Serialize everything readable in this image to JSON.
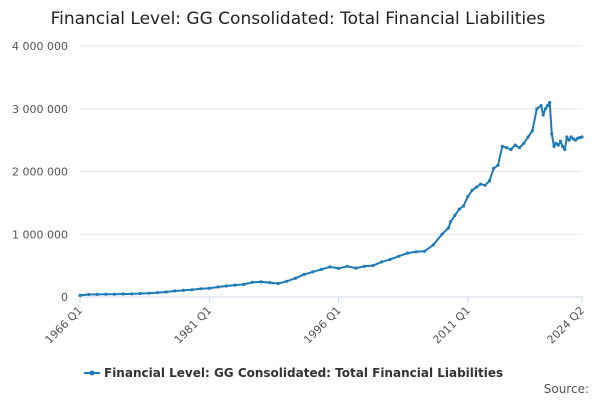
{
  "chart_data": {
    "type": "line",
    "title": "Financial Level: GG Consolidated: Total Financial Liabilities",
    "xlabel": "",
    "ylabel": "",
    "ylim": [
      0,
      4000000
    ],
    "yticks": [
      0,
      1000000,
      2000000,
      3000000,
      4000000
    ],
    "ytick_labels": [
      "0",
      "1 000 000",
      "2 000 000",
      "3 000 000",
      "4 000 000"
    ],
    "xlim": [
      1966.0,
      2024.25
    ],
    "xticks": [
      1966.0,
      1981.0,
      1996.0,
      2011.0,
      2024.25
    ],
    "xtick_labels": [
      "1966 Q1",
      "1981 Q1",
      "1996 Q1",
      "2011 Q1",
      "2024 Q2"
    ],
    "grid": "horizontal",
    "legend_position": "bottom",
    "series": [
      {
        "name": "Financial Level: GG Consolidated: Total Financial Liabilities",
        "color": "#1f7bb6",
        "x": [
          1966.0,
          1967.0,
          1968.0,
          1969.0,
          1970.0,
          1971.0,
          1972.0,
          1973.0,
          1974.0,
          1975.0,
          1976.0,
          1977.0,
          1978.0,
          1979.0,
          1980.0,
          1981.0,
          1982.0,
          1983.0,
          1984.0,
          1985.0,
          1986.0,
          1987.0,
          1988.0,
          1989.0,
          1990.0,
          1991.0,
          1992.0,
          1993.0,
          1994.0,
          1995.0,
          1996.0,
          1997.0,
          1998.0,
          1999.0,
          2000.0,
          2001.0,
          2002.0,
          2003.0,
          2004.0,
          2005.0,
          2006.0,
          2007.0,
          2008.0,
          2008.75,
          2009.0,
          2009.5,
          2010.0,
          2010.5,
          2011.0,
          2011.5,
          2012.0,
          2012.5,
          2013.0,
          2013.5,
          2014.0,
          2014.5,
          2015.0,
          2015.5,
          2016.0,
          2016.5,
          2017.0,
          2017.5,
          2018.0,
          2018.5,
          2019.0,
          2019.5,
          2019.75,
          2020.0,
          2020.25,
          2020.5,
          2020.75,
          2021.0,
          2021.25,
          2021.5,
          2021.75,
          2022.0,
          2022.25,
          2022.5,
          2022.75,
          2023.0,
          2023.25,
          2023.5,
          2023.75,
          2024.0,
          2024.25
        ],
        "values": [
          25000,
          40000,
          42000,
          45000,
          45000,
          48000,
          50000,
          55000,
          60000,
          70000,
          80000,
          95000,
          105000,
          115000,
          130000,
          140000,
          160000,
          175000,
          190000,
          200000,
          235000,
          240000,
          230000,
          215000,
          250000,
          300000,
          360000,
          400000,
          440000,
          480000,
          455000,
          490000,
          460000,
          490000,
          500000,
          560000,
          600000,
          650000,
          700000,
          720000,
          730000,
          830000,
          1000000,
          1100000,
          1200000,
          1300000,
          1400000,
          1450000,
          1600000,
          1700000,
          1750000,
          1800000,
          1780000,
          1850000,
          2050000,
          2100000,
          2400000,
          2380000,
          2350000,
          2420000,
          2380000,
          2450000,
          2550000,
          2650000,
          3000000,
          3050000,
          2900000,
          3000000,
          3050000,
          3100000,
          2600000,
          2400000,
          2450000,
          2420000,
          2480000,
          2400000,
          2350000,
          2550000,
          2500000,
          2550000,
          2520000,
          2500000,
          2530000,
          2540000,
          2550000
        ]
      }
    ]
  },
  "legend": {
    "label": "Financial Level: GG Consolidated: Total Financial Liabilities"
  },
  "footer": {
    "source_label": "Source:"
  }
}
